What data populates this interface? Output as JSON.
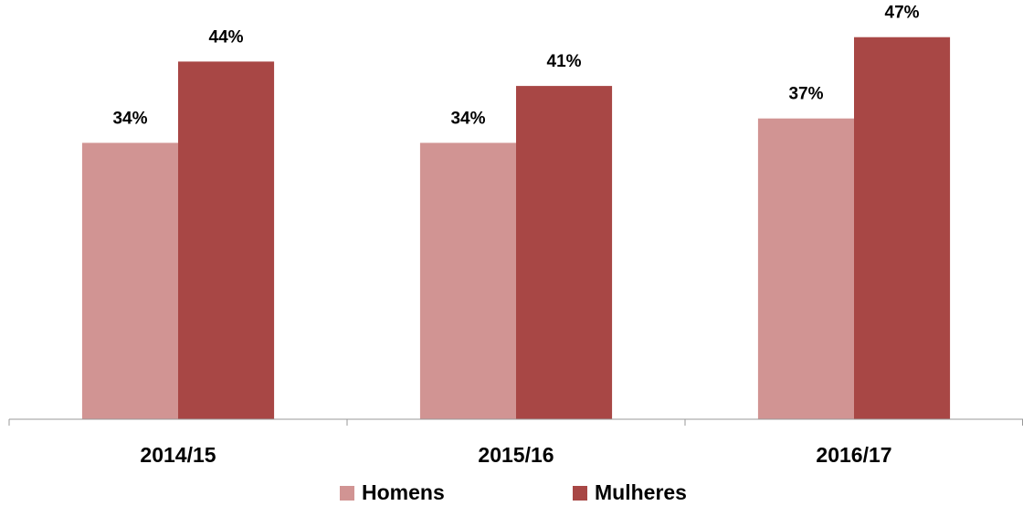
{
  "chart_data": {
    "type": "bar",
    "categories": [
      "2014/15",
      "2015/16",
      "2016/17"
    ],
    "series": [
      {
        "name": "Homens",
        "color": "#d19493",
        "values": [
          34,
          34,
          37
        ],
        "value_labels": [
          "34%",
          "34%",
          "37%"
        ]
      },
      {
        "name": "Mulheres",
        "color": "#a84745",
        "values": [
          44,
          41,
          47
        ],
        "value_labels": [
          "44%",
          "41%",
          "47%"
        ]
      }
    ],
    "ylim": [
      0,
      50
    ]
  }
}
